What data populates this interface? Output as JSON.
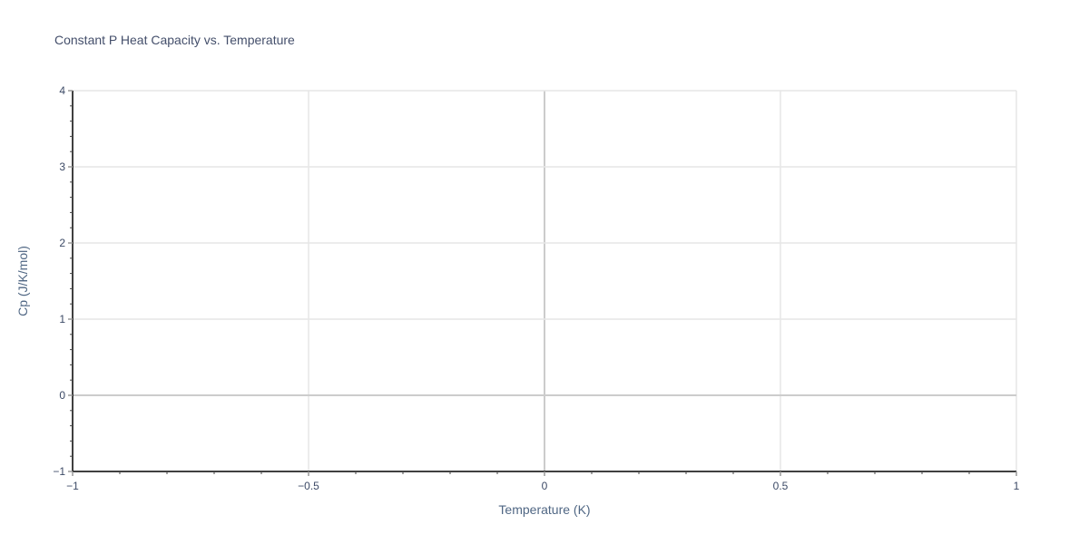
{
  "chart_data": {
    "type": "scatter",
    "title": "Constant P Heat Capacity vs. Temperature",
    "xlabel": "Temperature (K)",
    "ylabel": "Cp (J/K/mol)",
    "xlim": [
      -1,
      1
    ],
    "ylim": [
      -1,
      4
    ],
    "x_ticks": [
      -1,
      -0.5,
      0,
      0.5,
      1
    ],
    "x_tick_labels": [
      "−1",
      "−0.5",
      "0",
      "0.5",
      "1"
    ],
    "y_ticks": [
      -1,
      0,
      1,
      2,
      3,
      4
    ],
    "y_tick_labels": [
      "−1",
      "0",
      "1",
      "2",
      "3",
      "4"
    ],
    "x_minor_step": 0.1,
    "y_minor_step": 0.2,
    "grid": true,
    "series": []
  }
}
